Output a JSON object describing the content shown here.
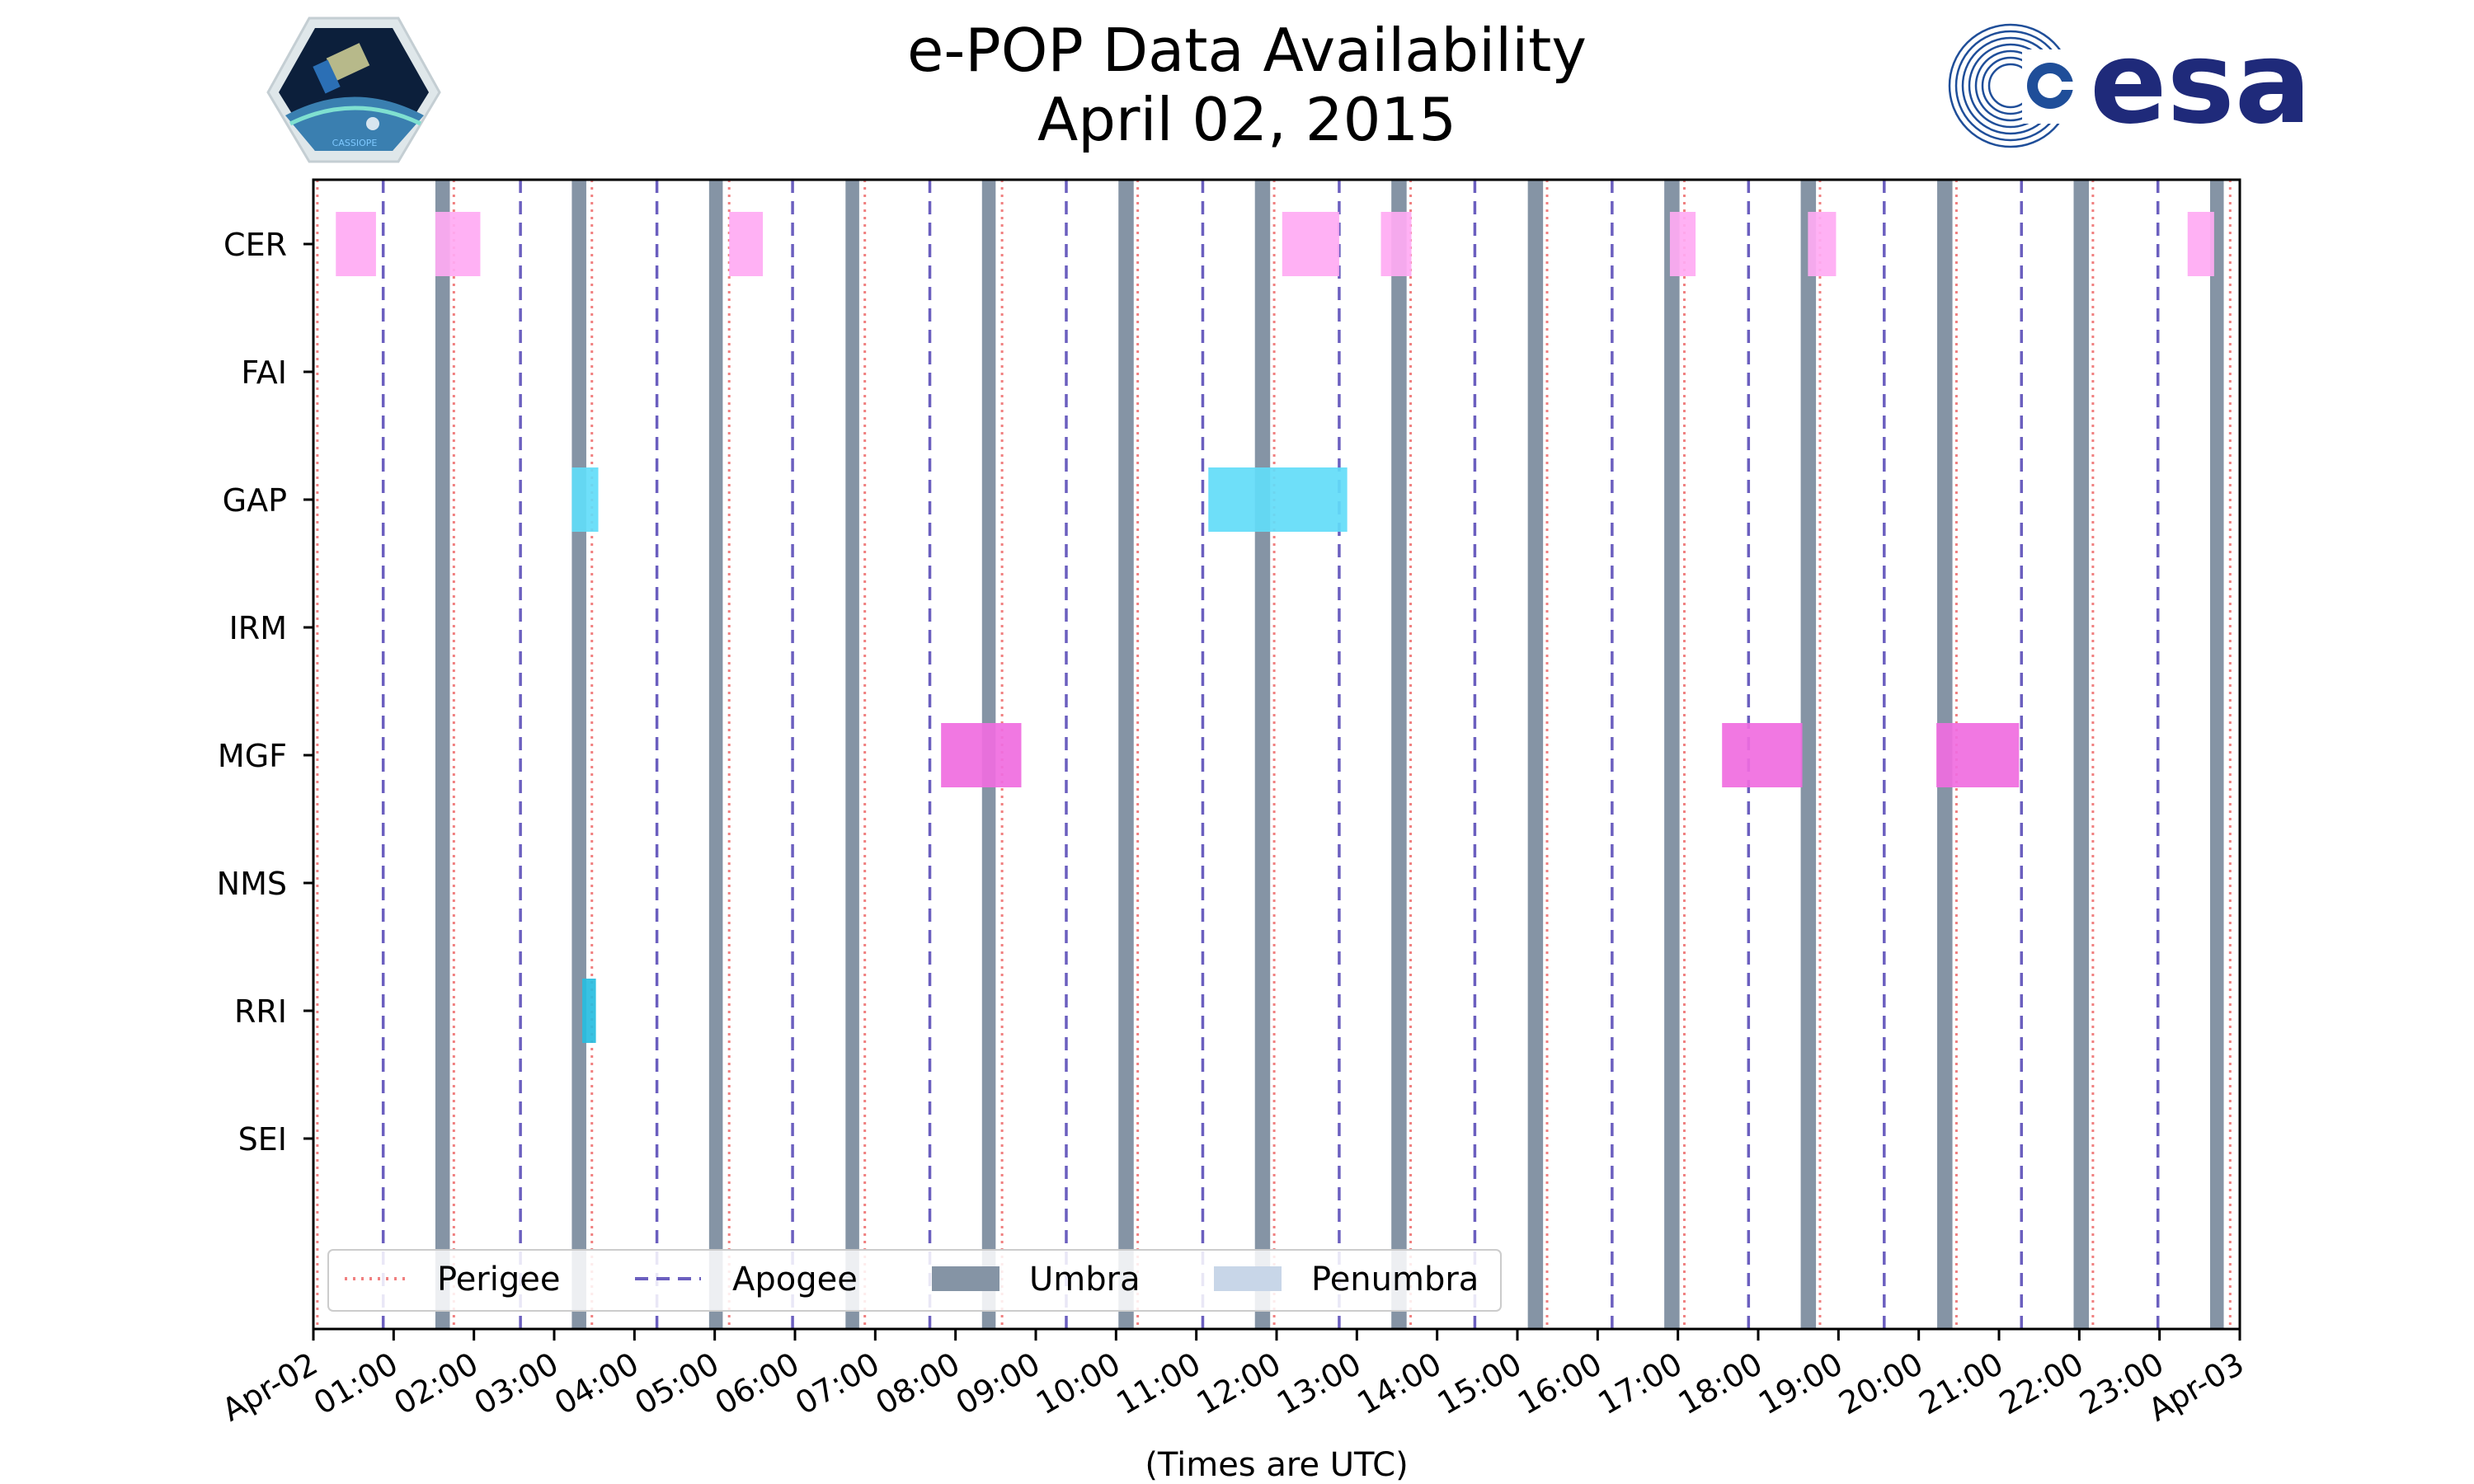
{
  "chart_data": {
    "type": "timeline",
    "title_line1": "e-POP Data Availability",
    "title_line2": "April 02, 2015",
    "xlabel": "(Times are UTC)",
    "x_range_hours": [
      0,
      24
    ],
    "x_tick_labels": [
      "Apr-02",
      "01:00",
      "02:00",
      "03:00",
      "04:00",
      "05:00",
      "06:00",
      "07:00",
      "08:00",
      "09:00",
      "10:00",
      "11:00",
      "12:00",
      "13:00",
      "14:00",
      "15:00",
      "16:00",
      "17:00",
      "18:00",
      "19:00",
      "20:00",
      "21:00",
      "22:00",
      "23:00",
      "Apr-03"
    ],
    "instruments": [
      "CER",
      "FAI",
      "GAP",
      "IRM",
      "MGF",
      "NMS",
      "RRI",
      "SEI"
    ],
    "perigee_hours": [
      0.05,
      1.75,
      3.47,
      5.18,
      6.87,
      8.58,
      10.27,
      11.97,
      13.67,
      15.37,
      17.08,
      18.77,
      20.47,
      22.17,
      23.88
    ],
    "apogee_hours": [
      0.87,
      2.58,
      4.28,
      5.97,
      7.68,
      9.38,
      11.08,
      12.78,
      14.47,
      16.18,
      17.88,
      19.57,
      21.28,
      22.98
    ],
    "umbra_intervals": [
      [
        1.52,
        1.7
      ],
      [
        3.22,
        3.4
      ],
      [
        4.93,
        5.1
      ],
      [
        6.63,
        6.8
      ],
      [
        8.33,
        8.5
      ],
      [
        10.03,
        10.22
      ],
      [
        11.73,
        11.92
      ],
      [
        13.43,
        13.62
      ],
      [
        15.13,
        15.32
      ],
      [
        16.83,
        17.02
      ],
      [
        18.53,
        18.72
      ],
      [
        20.23,
        20.42
      ],
      [
        21.93,
        22.12
      ],
      [
        23.63,
        23.8
      ]
    ],
    "data_intervals": [
      {
        "instrument": "CER",
        "start": 0.28,
        "end": 0.78,
        "color": "#ffaaf3"
      },
      {
        "instrument": "CER",
        "start": 1.52,
        "end": 2.08,
        "color": "#ffaaf3"
      },
      {
        "instrument": "CER",
        "start": 5.18,
        "end": 5.6,
        "color": "#ffaaf3"
      },
      {
        "instrument": "CER",
        "start": 12.07,
        "end": 12.78,
        "color": "#ffaaf3"
      },
      {
        "instrument": "CER",
        "start": 13.3,
        "end": 13.68,
        "color": "#ffaaf3"
      },
      {
        "instrument": "CER",
        "start": 16.9,
        "end": 17.22,
        "color": "#ffaaf3"
      },
      {
        "instrument": "CER",
        "start": 18.62,
        "end": 18.97,
        "color": "#ffaaf3"
      },
      {
        "instrument": "CER",
        "start": 23.35,
        "end": 23.68,
        "color": "#ffaaf3"
      },
      {
        "instrument": "GAP",
        "start": 3.22,
        "end": 3.55,
        "color": "#62dcf8"
      },
      {
        "instrument": "GAP",
        "start": 11.15,
        "end": 12.88,
        "color": "#62dcf8"
      },
      {
        "instrument": "MGF",
        "start": 7.82,
        "end": 8.82,
        "color": "#f06ddf"
      },
      {
        "instrument": "MGF",
        "start": 17.55,
        "end": 18.55,
        "color": "#f06ddf"
      },
      {
        "instrument": "MGF",
        "start": 20.22,
        "end": 21.25,
        "color": "#f06ddf"
      },
      {
        "instrument": "RRI",
        "start": 3.35,
        "end": 3.52,
        "color": "#27bde0"
      }
    ],
    "legend": [
      {
        "key": "perigee",
        "label": "Perigee",
        "color": "#f08080",
        "style": "dotted"
      },
      {
        "key": "apogee",
        "label": "Apogee",
        "color": "#6b5fbf",
        "style": "dashed"
      },
      {
        "key": "umbra",
        "label": "Umbra",
        "color": "#8594a5",
        "style": "patch"
      },
      {
        "key": "penumbra",
        "label": "Penumbra",
        "color": "#c8d6e8",
        "style": "patch"
      }
    ],
    "legend_position": "lower-left",
    "colors": {
      "perigee": "#f08080",
      "apogee": "#6b5fbf",
      "umbra": "#8594a5",
      "penumbra": "#c8d6e8"
    }
  },
  "logos": {
    "cassiope_text": "CASSIOPE",
    "esa_text": "esa"
  }
}
